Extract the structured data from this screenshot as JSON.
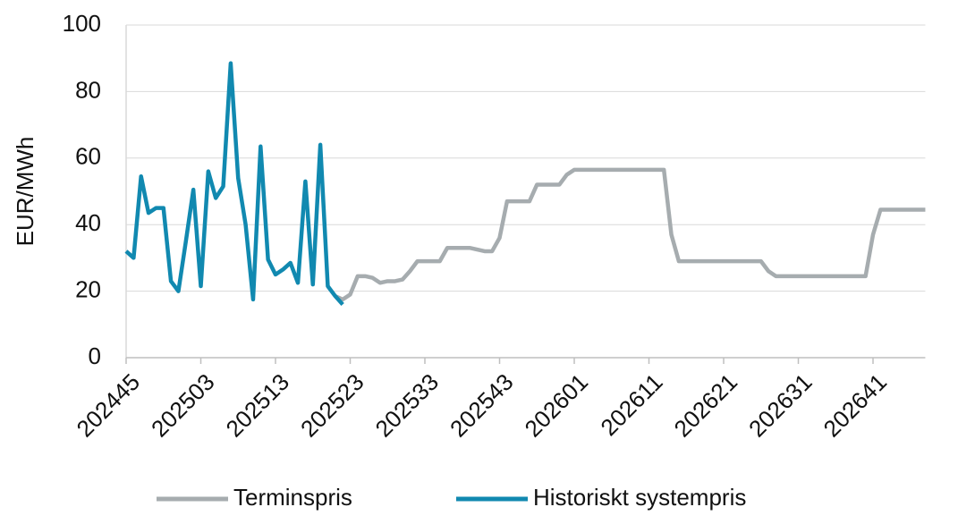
{
  "chart_data": {
    "type": "line",
    "y_label": "EUR/MWh",
    "categories": [
      "202445",
      null,
      null,
      null,
      null,
      null,
      null,
      null,
      null,
      null,
      "202503",
      null,
      null,
      null,
      null,
      null,
      null,
      null,
      null,
      null,
      "202513",
      null,
      null,
      null,
      null,
      null,
      null,
      null,
      null,
      null,
      "202523",
      null,
      null,
      null,
      null,
      null,
      null,
      null,
      null,
      null,
      "202533",
      null,
      null,
      null,
      null,
      null,
      null,
      null,
      null,
      null,
      "202543",
      null,
      null,
      null,
      null,
      null,
      null,
      null,
      null,
      null,
      "202601",
      null,
      null,
      null,
      null,
      null,
      null,
      null,
      null,
      null,
      "202611",
      null,
      null,
      null,
      null,
      null,
      null,
      null,
      null,
      null,
      "202621",
      null,
      null,
      null,
      null,
      null,
      null,
      null,
      null,
      null,
      "202631",
      null,
      null,
      null,
      null,
      null,
      null,
      null,
      null,
      null,
      "202641",
      null,
      null,
      null,
      null,
      null,
      null,
      null
    ],
    "series": [
      {
        "name": "Terminspris",
        "color": "#a6acaf",
        "values": [
          null,
          null,
          null,
          null,
          null,
          null,
          null,
          null,
          null,
          null,
          null,
          null,
          null,
          null,
          null,
          null,
          null,
          null,
          null,
          null,
          null,
          null,
          null,
          null,
          null,
          null,
          null,
          null,
          18.5,
          17.5,
          19,
          24.5,
          24.5,
          24,
          22.5,
          23,
          23,
          23.5,
          26,
          29,
          29,
          29,
          29,
          33,
          33,
          33,
          33,
          32.5,
          32,
          32,
          36,
          47,
          47,
          47,
          47,
          52,
          52,
          52,
          52,
          55,
          56.5,
          56.5,
          56.5,
          56.5,
          56.5,
          56.5,
          56.5,
          56.5,
          56.5,
          56.5,
          56.5,
          56.5,
          56.5,
          37,
          29,
          29,
          29,
          29,
          29,
          29,
          29,
          29,
          29,
          29,
          29,
          29,
          26,
          24.5,
          24.5,
          24.5,
          24.5,
          24.5,
          24.5,
          24.5,
          24.5,
          24.5,
          24.5,
          24.5,
          24.5,
          24.5,
          37,
          44.5,
          44.5,
          44.5,
          44.5,
          44.5,
          44.5,
          44.5
        ]
      },
      {
        "name": "Historiskt systempris",
        "color": "#1189b0",
        "values": [
          32,
          30,
          54.5,
          43.5,
          45,
          45,
          23,
          20,
          35,
          50.5,
          21.5,
          56,
          48,
          51.5,
          88.5,
          54,
          40,
          17.5,
          63.5,
          29.5,
          25,
          26.5,
          28.5,
          22.5,
          53,
          22,
          64,
          21.5,
          18.5,
          16,
          null,
          null,
          null,
          null,
          null,
          null,
          null,
          null,
          null,
          null,
          null,
          null,
          null,
          null,
          null,
          null,
          null,
          null,
          null,
          null,
          null,
          null,
          null,
          null,
          null,
          null,
          null,
          null,
          null,
          null,
          null,
          null,
          null,
          null,
          null,
          null,
          null,
          null,
          null,
          null,
          null,
          null,
          null,
          null,
          null,
          null,
          null,
          null,
          null,
          null,
          null,
          null,
          null,
          null,
          null,
          null,
          null,
          null,
          null,
          null,
          null,
          null,
          null,
          null,
          null,
          null,
          null,
          null,
          null,
          null,
          null,
          null,
          null,
          null,
          null,
          null,
          null,
          null
        ]
      }
    ],
    "ylim": [
      0,
      100
    ],
    "yticks": [
      0,
      20,
      40,
      60,
      80,
      100
    ],
    "grid": true
  }
}
